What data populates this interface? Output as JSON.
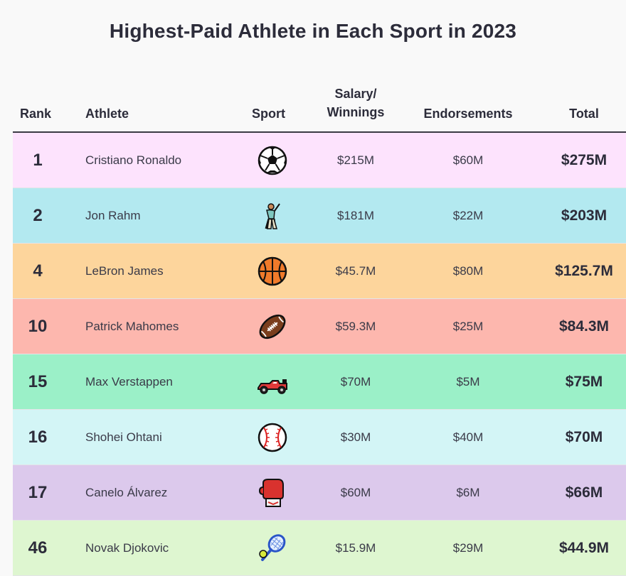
{
  "title": "Highest-Paid Athlete in Each Sport in 2023",
  "headers": {
    "rank": "Rank",
    "athlete": "Athlete",
    "sport": "Sport",
    "salary_line1": "Salary/",
    "salary_line2": "Winnings",
    "endorsements": "Endorsements",
    "total": "Total"
  },
  "rows": [
    {
      "rank": "1",
      "athlete": "Cristiano Ronaldo",
      "sport_icon": "soccer-ball-icon",
      "salary": "$215M",
      "endorsements": "$60M",
      "total": "$275M",
      "color": "#fde3fd"
    },
    {
      "rank": "2",
      "athlete": "Jon Rahm",
      "sport_icon": "golfer-icon",
      "salary": "$181M",
      "endorsements": "$22M",
      "total": "$203M",
      "color": "#b3e9f0"
    },
    {
      "rank": "4",
      "athlete": "LeBron James",
      "sport_icon": "basketball-icon",
      "salary": "$45.7M",
      "endorsements": "$80M",
      "total": "$125.7M",
      "color": "#fdd59c"
    },
    {
      "rank": "10",
      "athlete": "Patrick Mahomes",
      "sport_icon": "football-icon",
      "salary": "$59.3M",
      "endorsements": "$25M",
      "total": "$84.3M",
      "color": "#fdb7ae"
    },
    {
      "rank": "15",
      "athlete": "Max Verstappen",
      "sport_icon": "race-car-icon",
      "salary": "$70M",
      "endorsements": "$5M",
      "total": "$75M",
      "color": "#9bf0c8"
    },
    {
      "rank": "16",
      "athlete": "Shohei Ohtani",
      "sport_icon": "baseball-icon",
      "salary": "$30M",
      "endorsements": "$40M",
      "total": "$70M",
      "color": "#d3f5f6"
    },
    {
      "rank": "17",
      "athlete": "Canelo Álvarez",
      "sport_icon": "boxing-glove-icon",
      "salary": "$60M",
      "endorsements": "$6M",
      "total": "$66M",
      "color": "#dcc9ec"
    },
    {
      "rank": "46",
      "athlete": "Novak Djokovic",
      "sport_icon": "tennis-icon",
      "salary": "$15.9M",
      "endorsements": "$29M",
      "total": "$44.9M",
      "color": "#def6d0"
    }
  ]
}
